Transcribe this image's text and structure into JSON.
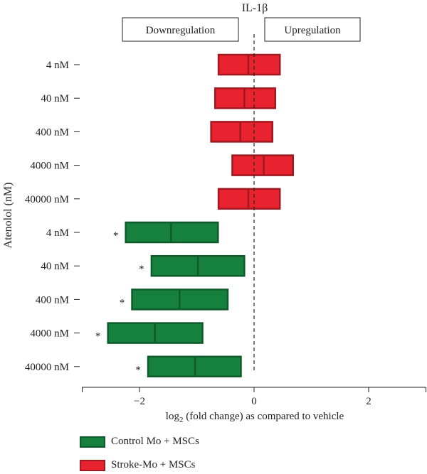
{
  "chart_data": {
    "type": "bar",
    "title": "IL-1β",
    "xlabel_main": "log",
    "xlabel_sub": "2",
    "xlabel_rest": " (fold change) as compared to vehicle",
    "ylabel": "Atenolol (nM)",
    "xlim": [
      -3,
      3
    ],
    "xticks": [
      -2,
      0,
      2
    ],
    "xtick_labels": [
      "−2",
      "0",
      "2"
    ],
    "annotations": {
      "left": "Downregulation",
      "right": "Upregulation"
    },
    "colors": {
      "stroke": "#e8222e",
      "stroke_edge": "#a01820",
      "control": "#16813e",
      "control_edge": "#0f5a2a"
    },
    "series": [
      {
        "name": "Stroke-Mo + MSCs",
        "color_key": "stroke",
        "categories": [
          "4 nM",
          "40 nM",
          "400 nM",
          "4000 nM",
          "40000 nM"
        ],
        "low": [
          -0.62,
          -0.68,
          -0.75,
          -0.38,
          -0.62
        ],
        "median": [
          -0.1,
          -0.17,
          -0.24,
          0.17,
          -0.1
        ],
        "high": [
          0.45,
          0.37,
          0.32,
          0.68,
          0.45
        ],
        "sig": [
          false,
          false,
          false,
          false,
          false
        ]
      },
      {
        "name": "Control Mo + MSCs",
        "color_key": "control",
        "categories": [
          "4 nM",
          "40 nM",
          "400 nM",
          "4000 nM",
          "40000 nM"
        ],
        "low": [
          -2.24,
          -1.79,
          -2.13,
          -2.55,
          -1.85
        ],
        "median": [
          -1.45,
          -0.98,
          -1.3,
          -1.73,
          -1.03
        ],
        "high": [
          -0.63,
          -0.17,
          -0.46,
          -0.9,
          -0.23
        ],
        "sig": [
          true,
          true,
          true,
          true,
          true
        ]
      }
    ],
    "sig_marker": "*",
    "legend": [
      {
        "name": "Control Mo + MSCs",
        "color_key": "control"
      },
      {
        "name": "Stroke-Mo + MSCs",
        "color_key": "stroke"
      }
    ]
  }
}
